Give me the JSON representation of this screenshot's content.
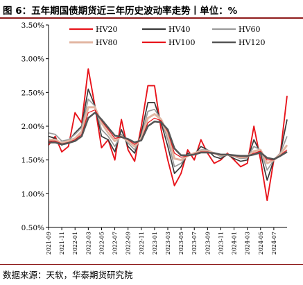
{
  "header": {
    "title": "图 6：五年期国债期货近三年历史波动率走势丨单位：%"
  },
  "footer": {
    "source": "数据来源：天软，华泰期货研究院"
  },
  "chart_data": {
    "type": "line",
    "ylim": [
      0.005,
      0.035
    ],
    "yticks": [
      "0.50%",
      "1.00%",
      "1.50%",
      "2.00%",
      "2.50%",
      "3.00%",
      "3.50%"
    ],
    "ytick_values": [
      0.005,
      0.01,
      0.015,
      0.02,
      0.025,
      0.03,
      0.035
    ],
    "xticks": [
      "2021-09",
      "2021-11",
      "2022-01",
      "2022-03",
      "2022-05",
      "2022-07",
      "2022-09",
      "2022-11",
      "2023-01",
      "2023-03",
      "2023-05",
      "2023-07",
      "2023-09",
      "2023-11",
      "2024-01",
      "2024-03",
      "2024-05",
      "2024-07"
    ],
    "x": [
      "2021-09",
      "2021-10",
      "2021-11",
      "2021-12",
      "2022-01",
      "2022-02",
      "2022-03",
      "2022-04",
      "2022-05",
      "2022-06",
      "2022-07",
      "2022-08",
      "2022-09",
      "2022-10",
      "2022-11",
      "2022-12",
      "2023-01",
      "2023-02",
      "2023-03",
      "2023-04",
      "2023-05",
      "2023-06",
      "2023-07",
      "2023-08",
      "2023-09",
      "2023-10",
      "2023-11",
      "2023-12",
      "2024-01",
      "2024-02",
      "2024-03",
      "2024-04",
      "2024-05",
      "2024-06",
      "2024-07",
      "2024-08",
      "2024-09"
    ],
    "legend_position": "top",
    "grid": false,
    "series": [
      {
        "name": "HV20",
        "color": "#e8141b",
        "width": 1.9,
        "values": [
          0.0172,
          0.0185,
          0.0162,
          0.017,
          0.022,
          0.0205,
          0.0285,
          0.023,
          0.0168,
          0.018,
          0.015,
          0.021,
          0.0165,
          0.0148,
          0.02,
          0.026,
          0.026,
          0.0195,
          0.015,
          0.0112,
          0.013,
          0.0165,
          0.015,
          0.018,
          0.016,
          0.0145,
          0.015,
          0.016,
          0.015,
          0.014,
          0.0145,
          0.02,
          0.015,
          0.009,
          0.015,
          0.016,
          0.0245
        ]
      },
      {
        "name": "HV40",
        "color": "#3a3a3a",
        "width": 1.7,
        "values": [
          0.0185,
          0.0182,
          0.0172,
          0.0178,
          0.019,
          0.02,
          0.0255,
          0.023,
          0.0185,
          0.018,
          0.0162,
          0.0195,
          0.017,
          0.016,
          0.019,
          0.0235,
          0.0235,
          0.0205,
          0.017,
          0.013,
          0.014,
          0.016,
          0.0158,
          0.017,
          0.0165,
          0.0155,
          0.0152,
          0.0158,
          0.0152,
          0.0148,
          0.015,
          0.018,
          0.016,
          0.012,
          0.015,
          0.016,
          0.021
        ]
      },
      {
        "name": "HV60",
        "color": "#9a9a9a",
        "width": 1.7,
        "values": [
          0.019,
          0.0188,
          0.0178,
          0.018,
          0.0188,
          0.0198,
          0.024,
          0.023,
          0.0195,
          0.0185,
          0.017,
          0.0188,
          0.0175,
          0.0165,
          0.0185,
          0.0222,
          0.0225,
          0.021,
          0.018,
          0.014,
          0.0145,
          0.0158,
          0.016,
          0.0165,
          0.0165,
          0.016,
          0.0155,
          0.0158,
          0.0155,
          0.0152,
          0.0153,
          0.017,
          0.0165,
          0.0135,
          0.015,
          0.016,
          0.0185
        ]
      },
      {
        "name": "HV80",
        "color": "#e2b6a2",
        "width": 3.0,
        "values": [
          0.018,
          0.018,
          0.0175,
          0.0178,
          0.0182,
          0.0192,
          0.0228,
          0.0228,
          0.0205,
          0.019,
          0.0178,
          0.0185,
          0.0178,
          0.017,
          0.0182,
          0.0212,
          0.0218,
          0.021,
          0.0188,
          0.0152,
          0.015,
          0.0156,
          0.016,
          0.0163,
          0.0163,
          0.016,
          0.0157,
          0.0158,
          0.0156,
          0.0154,
          0.0155,
          0.0163,
          0.0165,
          0.0145,
          0.015,
          0.0158,
          0.0172
        ]
      },
      {
        "name": "HV100",
        "color": "#e8141b",
        "width": 1.2,
        "values": [
          0.0178,
          0.0178,
          0.0174,
          0.0176,
          0.018,
          0.0188,
          0.022,
          0.0224,
          0.0208,
          0.0195,
          0.0182,
          0.0184,
          0.018,
          0.0173,
          0.018,
          0.0205,
          0.0212,
          0.0208,
          0.0192,
          0.016,
          0.0154,
          0.0156,
          0.0159,
          0.0162,
          0.0162,
          0.016,
          0.0158,
          0.0158,
          0.0156,
          0.0155,
          0.0155,
          0.016,
          0.0163,
          0.015,
          0.015,
          0.0157,
          0.0165
        ]
      },
      {
        "name": "HV120",
        "color": "#555555",
        "width": 2.6,
        "values": [
          0.0176,
          0.0176,
          0.0173,
          0.0175,
          0.0178,
          0.0185,
          0.0212,
          0.022,
          0.021,
          0.0198,
          0.0186,
          0.0184,
          0.0181,
          0.0176,
          0.0179,
          0.02,
          0.0207,
          0.0206,
          0.0195,
          0.0167,
          0.0157,
          0.0157,
          0.0158,
          0.0161,
          0.0161,
          0.016,
          0.0158,
          0.0158,
          0.0157,
          0.0156,
          0.0156,
          0.0158,
          0.0161,
          0.0153,
          0.0151,
          0.0156,
          0.0162
        ]
      }
    ]
  }
}
